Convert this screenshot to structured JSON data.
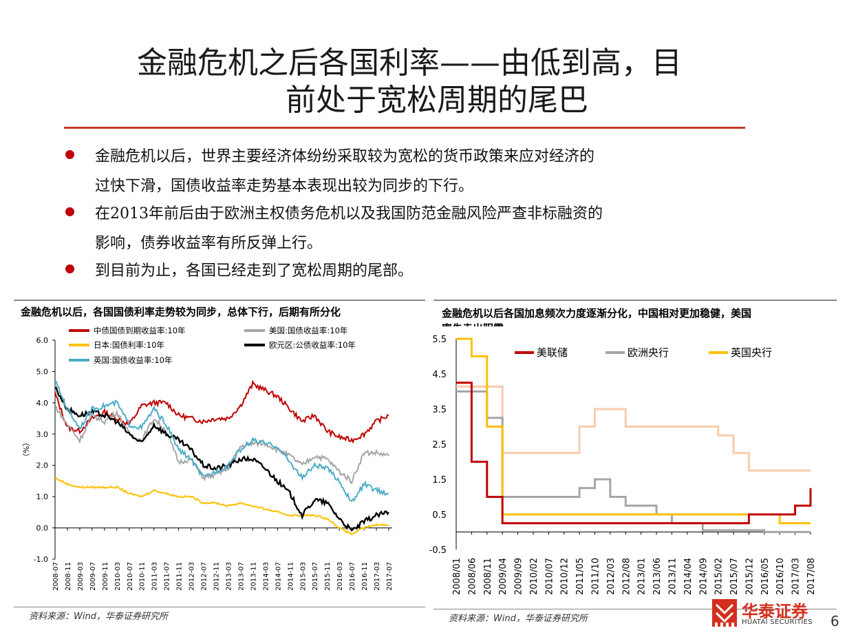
{
  "page": {
    "title_line1": "金融危机之后各国利率——由低到高，目",
    "title_line2": "前处于宽松周期的尾巴",
    "bullets": [
      "金融危机以后，世界主要经济体纷纷采取较为宽松的货币政策来应对经济的",
      "过快下滑，国债收益率走势基本表现出较为同步的下行。",
      "在2013年前后由于欧洲主权债务危机以及我国防范金融风险严查非标融资的",
      "影响，债券收益率有所反弹上行。",
      "到目前为止，各国已经走到了宽松周期的尾部。"
    ],
    "page_number": "6",
    "logo_cn": "华泰证券",
    "logo_en": "HUATAI SECURITIES",
    "colors": {
      "accent": "#c0392b",
      "bullet": "#c0000b",
      "logo": "#d32f1f"
    }
  },
  "left_chart": {
    "title": "金融危机以后，各国国债利率走势较为同步，总体下行，后期有所分化",
    "source": "资料来源：Wind，华泰证券研究所"
  },
  "right_chart": {
    "title": "金融危机以后各国加息频次力度逐渐分化，中国相对更加稳健，美国",
    "title_cut": "率先走出阴霾",
    "source": "资料来源：Wind，华泰证券研究所"
  },
  "chart_data": [
    {
      "type": "line",
      "ylabel": "（%）",
      "ylim": [
        -1.0,
        6.0
      ],
      "yticks": [
        "6.0",
        "5.0",
        "4.0",
        "3.0",
        "2.0",
        "1.0",
        "0.0",
        "-1.0"
      ],
      "x": [
        "2008-07",
        "2008-11",
        "2009-03",
        "2009-07",
        "2009-11",
        "2010-03",
        "2010-07",
        "2010-11",
        "2011-03",
        "2011-07",
        "2011-11",
        "2012-03",
        "2012-07",
        "2012-11",
        "2013-03",
        "2013-07",
        "2013-11",
        "2014-03",
        "2014-07",
        "2014-11",
        "2015-03",
        "2015-07",
        "2015-11",
        "2016-03",
        "2016-07",
        "2016-11",
        "2017-03",
        "2017-07"
      ],
      "legend_placement": "top",
      "series": [
        {
          "name": "中债国债到期收益率:10年",
          "color": "#c00000",
          "values": [
            4.3,
            3.2,
            3.1,
            3.5,
            3.7,
            3.5,
            3.3,
            3.9,
            4.0,
            4.0,
            3.6,
            3.5,
            3.4,
            3.5,
            3.5,
            3.9,
            4.6,
            4.4,
            4.2,
            3.8,
            3.4,
            3.6,
            3.1,
            2.9,
            2.8,
            3.0,
            3.4,
            3.6
          ]
        },
        {
          "name": "美国:国债收益率:10年",
          "color": "#a6a6a6",
          "values": [
            3.9,
            3.3,
            2.8,
            3.6,
            3.4,
            3.7,
            3.0,
            2.8,
            3.5,
            3.1,
            2.1,
            2.2,
            1.6,
            1.7,
            1.9,
            2.6,
            2.7,
            2.7,
            2.5,
            2.3,
            2.0,
            2.3,
            2.2,
            1.8,
            1.5,
            2.4,
            2.4,
            2.3
          ]
        },
        {
          "name": "日本:国债利率:10年",
          "color": "#ffc000",
          "values": [
            1.6,
            1.4,
            1.3,
            1.3,
            1.3,
            1.3,
            1.1,
            1.0,
            1.2,
            1.1,
            1.0,
            1.0,
            0.8,
            0.8,
            0.7,
            0.8,
            0.7,
            0.6,
            0.5,
            0.4,
            0.4,
            0.4,
            0.3,
            0.0,
            -0.2,
            0.0,
            0.1,
            0.1
          ]
        },
        {
          "name": "欧元区:公债收益率:10年",
          "color": "#000000",
          "values": [
            4.5,
            3.8,
            3.6,
            3.7,
            3.6,
            3.4,
            3.0,
            2.7,
            3.3,
            3.0,
            2.8,
            2.5,
            2.0,
            1.9,
            2.0,
            2.2,
            2.2,
            1.9,
            1.5,
            1.1,
            0.4,
            0.9,
            0.8,
            0.3,
            -0.1,
            0.2,
            0.4,
            0.5
          ]
        },
        {
          "name": "英国:国债收益率:10年",
          "color": "#4bacc6",
          "values": [
            4.7,
            3.8,
            3.2,
            3.8,
            3.9,
            4.0,
            3.3,
            3.2,
            3.8,
            3.3,
            2.5,
            2.2,
            1.6,
            1.8,
            2.0,
            2.5,
            2.8,
            2.7,
            2.6,
            2.1,
            1.6,
            2.0,
            1.9,
            1.5,
            0.8,
            1.4,
            1.2,
            1.1
          ]
        }
      ]
    },
    {
      "type": "line",
      "ylim": [
        -0.5,
        5.5
      ],
      "yticks": [
        "5.5",
        "4.5",
        "3.5",
        "2.5",
        "1.5",
        "0.5",
        "-0.5"
      ],
      "x": [
        "2008/01",
        "2008/06",
        "2008/11",
        "2009/04",
        "2009/09",
        "2010/02",
        "2010/07",
        "2010/12",
        "2011/05",
        "2011/10",
        "2012/03",
        "2012/08",
        "2013/01",
        "2013/06",
        "2013/11",
        "2014/04",
        "2014/09",
        "2015/02",
        "2015/07",
        "2015/12",
        "2016/05",
        "2016/10",
        "2017/03",
        "2017/08"
      ],
      "legend_placement": "top",
      "series": [
        {
          "name": "美联储",
          "color": "#c00000",
          "values": [
            4.25,
            2.0,
            1.0,
            0.25,
            0.25,
            0.25,
            0.25,
            0.25,
            0.25,
            0.25,
            0.25,
            0.25,
            0.25,
            0.25,
            0.25,
            0.25,
            0.25,
            0.25,
            0.25,
            0.5,
            0.5,
            0.5,
            0.75,
            1.25
          ]
        },
        {
          "name": "欧洲央行",
          "color": "#a6a6a6",
          "values": [
            4.0,
            4.0,
            3.25,
            1.0,
            1.0,
            1.0,
            1.0,
            1.0,
            1.25,
            1.5,
            1.0,
            0.75,
            0.75,
            0.5,
            0.25,
            0.25,
            0.05,
            0.05,
            0.05,
            0.05,
            0.0,
            0.0,
            0.0,
            0.0
          ]
        },
        {
          "name": "英国央行",
          "color": "#ffc000",
          "values": [
            5.5,
            5.0,
            3.0,
            0.5,
            0.5,
            0.5,
            0.5,
            0.5,
            0.5,
            0.5,
            0.5,
            0.5,
            0.5,
            0.5,
            0.5,
            0.5,
            0.5,
            0.5,
            0.5,
            0.5,
            0.5,
            0.25,
            0.25,
            0.25
          ]
        },
        {
          "name": "",
          "color": "#f8cbad",
          "values": [
            4.14,
            4.14,
            4.14,
            2.25,
            2.25,
            2.25,
            2.25,
            2.25,
            3.0,
            3.5,
            3.5,
            3.0,
            3.0,
            3.0,
            3.0,
            3.0,
            3.0,
            2.75,
            2.25,
            1.75,
            1.75,
            1.75,
            1.75,
            1.75
          ]
        }
      ]
    }
  ]
}
